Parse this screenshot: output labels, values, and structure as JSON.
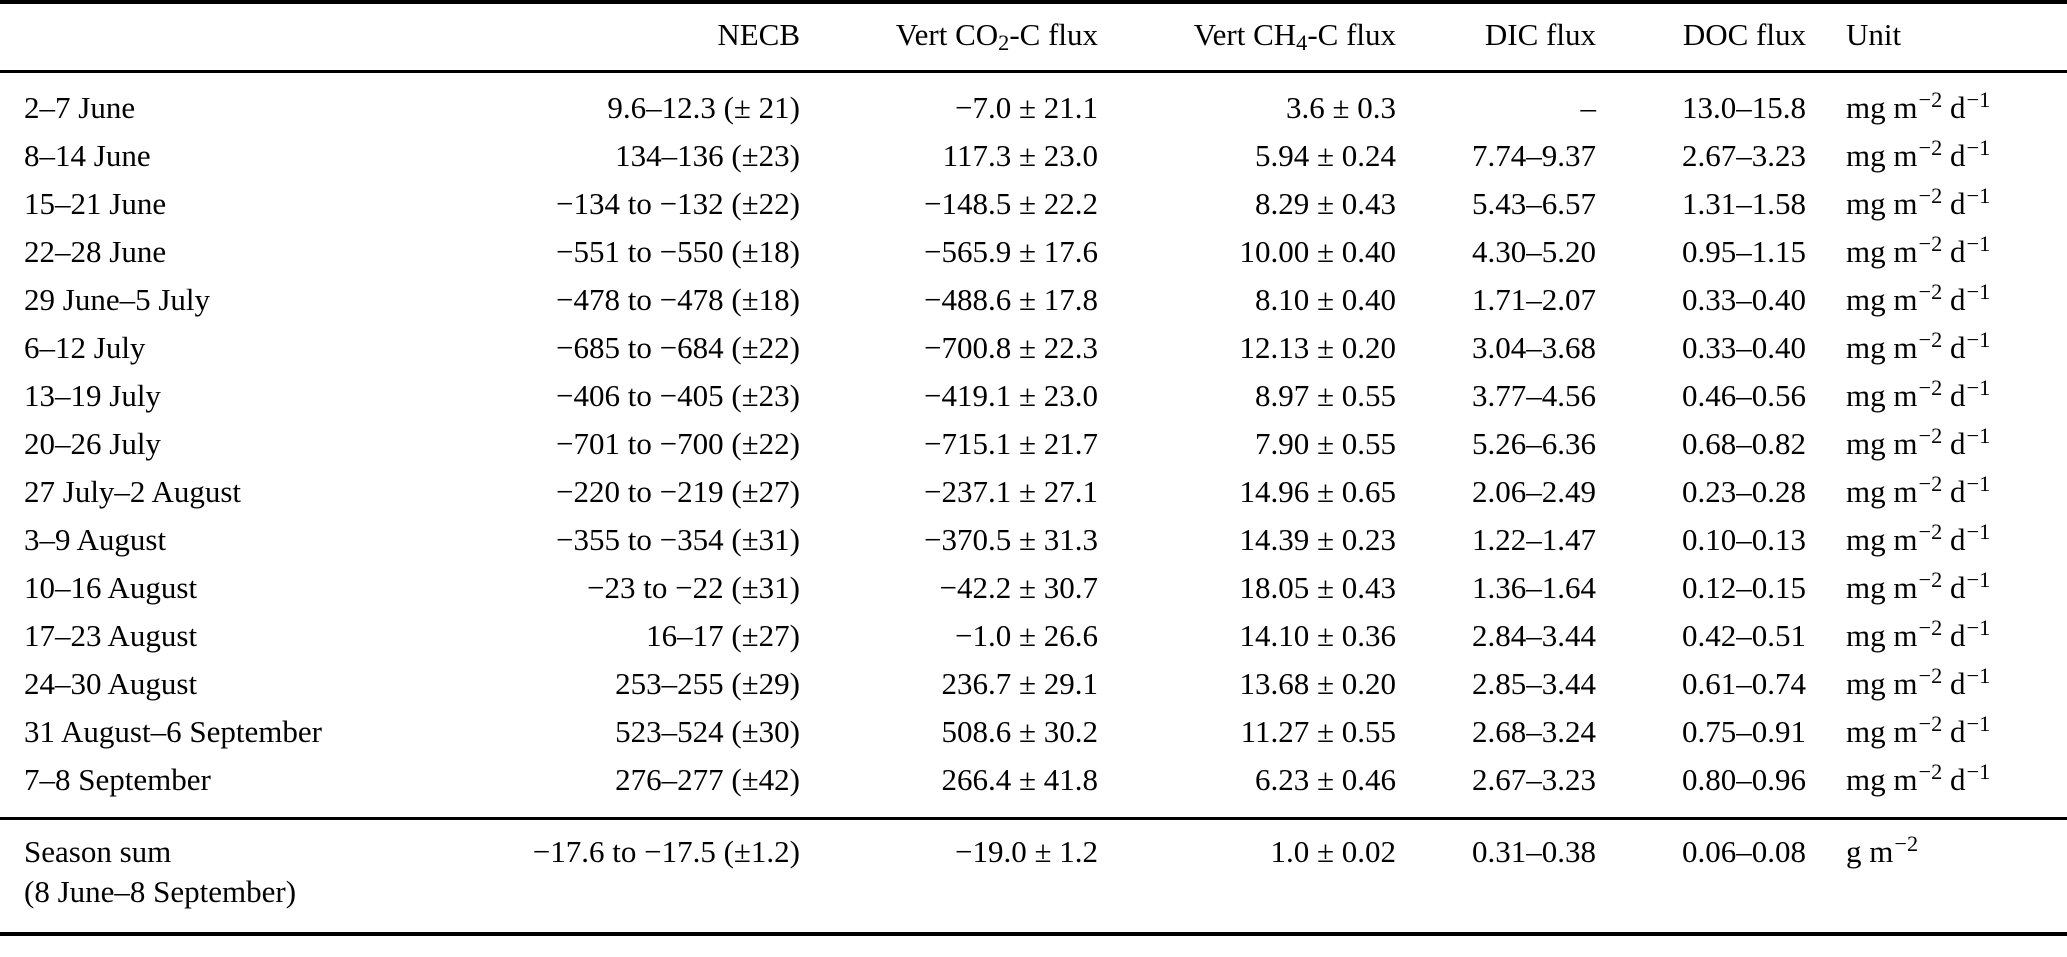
{
  "colors": {
    "background": "#ffffff",
    "text": "#000000",
    "rule": "#000000"
  },
  "table": {
    "header": {
      "period": "",
      "necb": [
        {
          "t": "NECB"
        }
      ],
      "co2": [
        {
          "t": "Vert CO"
        },
        {
          "sub": "2"
        },
        {
          "t": "-C flux"
        }
      ],
      "ch4": [
        {
          "t": "Vert CH"
        },
        {
          "sub": "4"
        },
        {
          "t": "-C flux"
        }
      ],
      "dic": [
        {
          "t": "DIC flux"
        }
      ],
      "doc": [
        {
          "t": "DOC flux"
        }
      ],
      "unit": [
        {
          "t": "Unit"
        }
      ]
    },
    "units": {
      "daily": [
        {
          "t": "mg m"
        },
        {
          "sup": "−2"
        },
        {
          "t": " d"
        },
        {
          "sup": "−1"
        }
      ],
      "season": [
        {
          "t": "g m"
        },
        {
          "sup": "−2"
        }
      ]
    },
    "rows": [
      {
        "period": "2–7 June",
        "necb": "9.6–12.3 (± 21)",
        "co2": "−7.0 ± 21.1",
        "ch4": "3.6 ± 0.3",
        "dic": "–",
        "doc": "13.0–15.8",
        "unit": "daily"
      },
      {
        "period": "8–14 June",
        "necb": "134–136 (±23)",
        "co2": "117.3 ± 23.0",
        "ch4": "5.94 ± 0.24",
        "dic": "7.74–9.37",
        "doc": "2.67–3.23",
        "unit": "daily"
      },
      {
        "period": "15–21 June",
        "necb": "−134 to −132 (±22)",
        "co2": "−148.5 ± 22.2",
        "ch4": "8.29 ± 0.43",
        "dic": "5.43–6.57",
        "doc": "1.31–1.58",
        "unit": "daily"
      },
      {
        "period": "22–28 June",
        "necb": "−551 to −550 (±18)",
        "co2": "−565.9 ± 17.6",
        "ch4": "10.00 ± 0.40",
        "dic": "4.30–5.20",
        "doc": "0.95–1.15",
        "unit": "daily"
      },
      {
        "period": "29 June–5 July",
        "necb": "−478 to −478 (±18)",
        "co2": "−488.6 ± 17.8",
        "ch4": "8.10 ± 0.40",
        "dic": "1.71–2.07",
        "doc": "0.33–0.40",
        "unit": "daily"
      },
      {
        "period": "6–12 July",
        "necb": "−685 to −684 (±22)",
        "co2": "−700.8 ± 22.3",
        "ch4": "12.13 ± 0.20",
        "dic": "3.04–3.68",
        "doc": "0.33–0.40",
        "unit": "daily"
      },
      {
        "period": "13–19 July",
        "necb": "−406 to −405 (±23)",
        "co2": "−419.1 ± 23.0",
        "ch4": "8.97 ± 0.55",
        "dic": "3.77–4.56",
        "doc": "0.46–0.56",
        "unit": "daily"
      },
      {
        "period": "20–26 July",
        "necb": "−701 to −700 (±22)",
        "co2": "−715.1 ± 21.7",
        "ch4": "7.90 ± 0.55",
        "dic": "5.26–6.36",
        "doc": "0.68–0.82",
        "unit": "daily"
      },
      {
        "period": "27 July–2 August",
        "necb": "−220 to −219 (±27)",
        "co2": "−237.1 ± 27.1",
        "ch4": "14.96 ± 0.65",
        "dic": "2.06–2.49",
        "doc": "0.23–0.28",
        "unit": "daily"
      },
      {
        "period": "3–9 August",
        "necb": "−355 to −354 (±31)",
        "co2": "−370.5 ± 31.3",
        "ch4": "14.39 ± 0.23",
        "dic": "1.22–1.47",
        "doc": "0.10–0.13",
        "unit": "daily"
      },
      {
        "period": "10–16 August",
        "necb": "−23 to −22 (±31)",
        "co2": "−42.2 ± 30.7",
        "ch4": "18.05 ± 0.43",
        "dic": "1.36–1.64",
        "doc": "0.12–0.15",
        "unit": "daily"
      },
      {
        "period": "17–23 August",
        "necb": "16–17 (±27)",
        "co2": "−1.0 ± 26.6",
        "ch4": "14.10 ± 0.36",
        "dic": "2.84–3.44",
        "doc": "0.42–0.51",
        "unit": "daily"
      },
      {
        "period": "24–30 August",
        "necb": "253–255 (±29)",
        "co2": "236.7 ± 29.1",
        "ch4": "13.68 ± 0.20",
        "dic": "2.85–3.44",
        "doc": "0.61–0.74",
        "unit": "daily"
      },
      {
        "period": "31 August–6 September",
        "necb": "523–524 (±30)",
        "co2": "508.6 ± 30.2",
        "ch4": "11.27 ± 0.55",
        "dic": "2.68–3.24",
        "doc": "0.75–0.91",
        "unit": "daily"
      },
      {
        "period": "7–8 September",
        "necb": "276–277 (±42)",
        "co2": "266.4 ± 41.8",
        "ch4": "6.23 ± 0.46",
        "dic": "2.67–3.23",
        "doc": "0.80–0.96",
        "unit": "daily"
      }
    ],
    "season": {
      "period_line1": "Season sum",
      "period_line2": "(8 June–8 September)",
      "necb": "−17.6 to −17.5 (±1.2)",
      "co2": "−19.0 ± 1.2",
      "ch4": "1.0 ± 0.02",
      "dic": "0.31–0.38",
      "doc": "0.06–0.08",
      "unit": "season"
    }
  }
}
